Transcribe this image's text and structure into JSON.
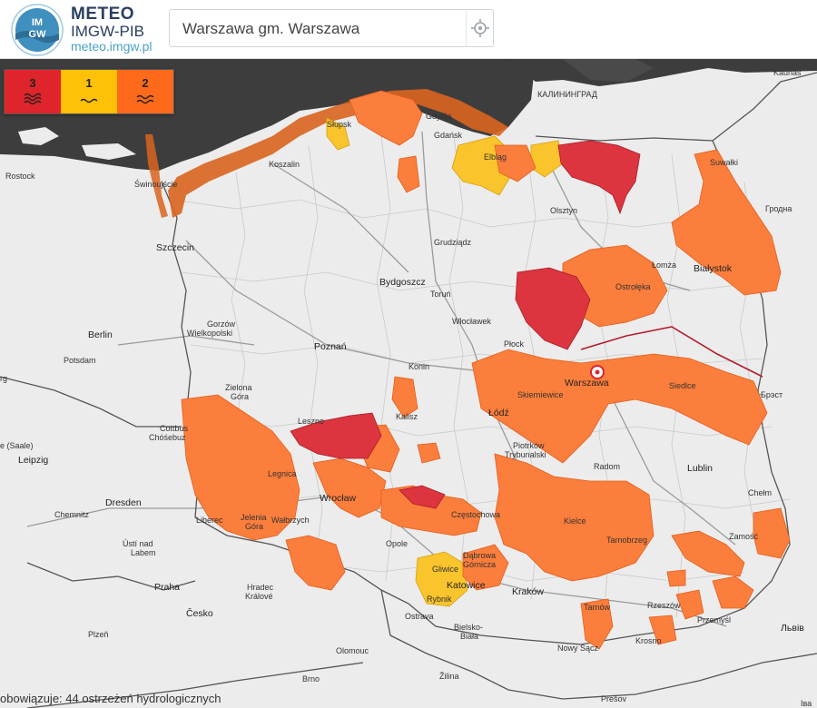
{
  "app": {
    "brand_title": "METEO",
    "brand_subtitle": "IMGW-PIB",
    "brand_url": "meteo.imgw.pl",
    "logo_text": "IMGW"
  },
  "search": {
    "value": "Warszawa gm. Warszawa",
    "locate_icon": "crosshair-icon"
  },
  "legend": {
    "items": [
      {
        "level": "3",
        "color": "#e0242b",
        "icon": "water-waves-icon"
      },
      {
        "level": "1",
        "color": "#ffc107",
        "icon": "water-waves-icon"
      },
      {
        "level": "2",
        "color": "#ff6a1a",
        "icon": "water-waves-icon"
      }
    ]
  },
  "map": {
    "colors": {
      "land": "#ececec",
      "sea": "#3d3d3d",
      "level1": "#fac42c",
      "level2": "#fb7e3c",
      "level3": "#dc3540",
      "border": "#555555"
    },
    "labels": {
      "kaliningrad": "КАЛИНИНГРАД",
      "kaunas": "Kaunas",
      "suwalki": "Suwałki",
      "grodno": "Гродна",
      "rostock": "Rostock",
      "koszalin": "Koszalin",
      "slupsk": "Słupsk",
      "gdynia": "Gdynia",
      "gdansk": "Gdańsk",
      "elblag": "Elbląg",
      "olsztyn": "Olsztyn",
      "swinoujscie": "Świnoujście",
      "szczecin": "Szczecin",
      "grudziadz": "Grudziądz",
      "lomza": "Łomża",
      "bialystok": "Białystok",
      "ostroleka": "Ostrołęka",
      "bydgoszcz": "Bydgoszcz",
      "torun": "Toruń",
      "wloclawek": "Włocławek",
      "plock": "Płock",
      "gorzow1": "Gorzów",
      "gorzow2": "Wielkopolski",
      "berlin": "Berlin",
      "potsdam": "Potsdam",
      "poznan": "Poznań",
      "konin": "Konin",
      "warszawa": "Warszawa",
      "siedlce": "Siedlce",
      "brest": "Брэст",
      "erg": "rg",
      "zielona1": "Zielona",
      "zielona2": "Góra",
      "skierniewice": "Skierniewice",
      "cottbus1": "Cottbus",
      "cottbus2": "Chóśebuz",
      "leszno": "Leszno",
      "kalisz": "Kalisz",
      "lodz": "Łódź",
      "halle": "e (Saale)",
      "piotrkow1": "Piotrków",
      "piotrkow2": "Trybunalski",
      "leipzig": "Leipzig",
      "legnica": "Legnica",
      "radom": "Radom",
      "lublin": "Lublin",
      "dresden": "Dresden",
      "wroclaw": "Wrocław",
      "chelm": "Chełm",
      "czestochowa": "Częstochowa",
      "chemnitz": "Chemnitz",
      "liberec": "Liberec",
      "jelenia1": "Jelenia",
      "jelenia2": "Góra",
      "walbrzych": "Wałbrzych",
      "kielce": "Kielce",
      "opole": "Opole",
      "tarnobrzeg": "Tarnobrzeg",
      "zamosc": "Zamość",
      "usti1": "Ústí nad",
      "usti2": "Labem",
      "dabrowa1": "Dąbrowa",
      "dabrowa2": "Górnicza",
      "gliwice": "Gliwice",
      "katowice": "Katowice",
      "krakow": "Kraków",
      "praha": "Praha",
      "hradec1": "Hradec",
      "hradec2": "Králové",
      "rybnik": "Rybnik",
      "tarnow": "Tarnów",
      "rzeszow": "Rzeszów",
      "cesko": "Česko",
      "ostrava": "Ostrava",
      "przemysl": "Przemyśl",
      "lviv": "Львів",
      "bielsko1": "Bielsko-",
      "bielsko2": "Biała",
      "krosno": "Krosno",
      "plzen": "Plzeň",
      "nowysacz": "Nowy Sącz",
      "olomouc": "Olomouc",
      "brno": "Brno",
      "zilina": "Žilina",
      "presov": "Prešov",
      "ivano": "Іва"
    }
  },
  "footer": {
    "text": "obowiązuje: 44 ostrzeżeń hydrologicznych"
  }
}
